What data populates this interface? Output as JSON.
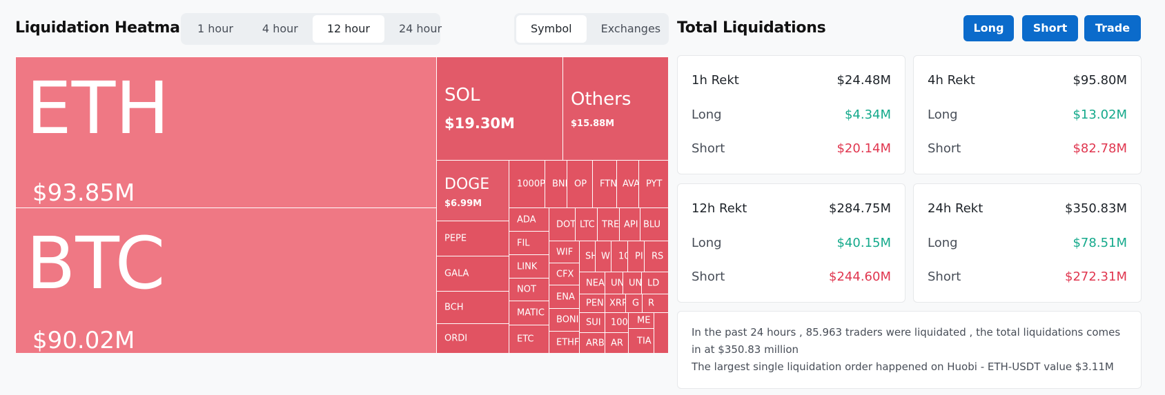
{
  "heatmap": {
    "title": "Liquidation Heatmap",
    "time_options": [
      "1 hour",
      "4 hour",
      "12 hour",
      "24 hour"
    ],
    "time_selected": "12 hour",
    "mode_options": [
      "Symbol",
      "Exchanges"
    ],
    "mode_selected": "Symbol",
    "cells": {
      "eth": {
        "symbol": "ETH",
        "value": "$93.85M"
      },
      "btc": {
        "symbol": "BTC",
        "value": "$90.02M"
      },
      "sol": {
        "symbol": "SOL",
        "value": "$19.30M"
      },
      "others": {
        "symbol": "Others",
        "value": "$15.88M"
      },
      "doge": {
        "symbol": "DOGE",
        "value": "$6.99M"
      },
      "pepe": "PEPE",
      "gala": "GALA",
      "bch": "BCH",
      "ordi": "ORDI",
      "c1000p": "1000P",
      "bnb": "BNE",
      "op": "OP",
      "ftm": "FTN",
      "avax": "AVA",
      "pyth": "PYT",
      "ada": "ADA",
      "fil": "FIL",
      "link": "LINK",
      "not": "NOT",
      "matic": "MATIC",
      "etc": "ETC",
      "dot": "DOT",
      "ltc": "LTC",
      "trb": "TRE",
      "apt": "API",
      "blur": "BLU",
      "wif": "WIF",
      "cfx": "CFX",
      "ena": "ENA",
      "bonk": "BONI",
      "ethfi": "ETHF",
      "shib": "SH",
      "w": "W",
      "c10": "10",
      "pl": "PI",
      "rs": "RS",
      "near": "NEA",
      "un1": "UN",
      "un2": "UN",
      "ld": "LD",
      "pen": "PEN",
      "xrp": "XRP",
      "g": "G",
      "r": "R",
      "sui": "SUI",
      "c100": "100",
      "me": "ME",
      "arb": "ARB",
      "ar": "AR",
      "tia": "TIA"
    }
  },
  "totals": {
    "title": "Total Liquidations",
    "buttons": {
      "long": "Long",
      "short": "Short",
      "trade": "Trade"
    },
    "long_label": "Long",
    "short_label": "Short",
    "cards": {
      "h1": {
        "label": "1h Rekt",
        "total": "$24.48M",
        "long": "$4.34M",
        "short": "$20.14M"
      },
      "h4": {
        "label": "4h Rekt",
        "total": "$95.80M",
        "long": "$13.02M",
        "short": "$82.78M"
      },
      "h12": {
        "label": "12h Rekt",
        "total": "$284.75M",
        "long": "$40.15M",
        "short": "$244.60M"
      },
      "h24": {
        "label": "24h Rekt",
        "total": "$350.83M",
        "long": "$78.51M",
        "short": "$272.31M"
      }
    },
    "summary_line1": "In the past 24 hours , 85.963 traders were liquidated , the total liquidations comes in at $350.83 million",
    "summary_line2": "The largest single liquidation order happened on Huobi - ETH-USDT value $3.11M"
  },
  "colors": {
    "accent": "#0b6bcb",
    "green": "#14a98b",
    "red": "#e0364f",
    "heat_major": "#ef7884",
    "heat_minor": "#e15362"
  }
}
